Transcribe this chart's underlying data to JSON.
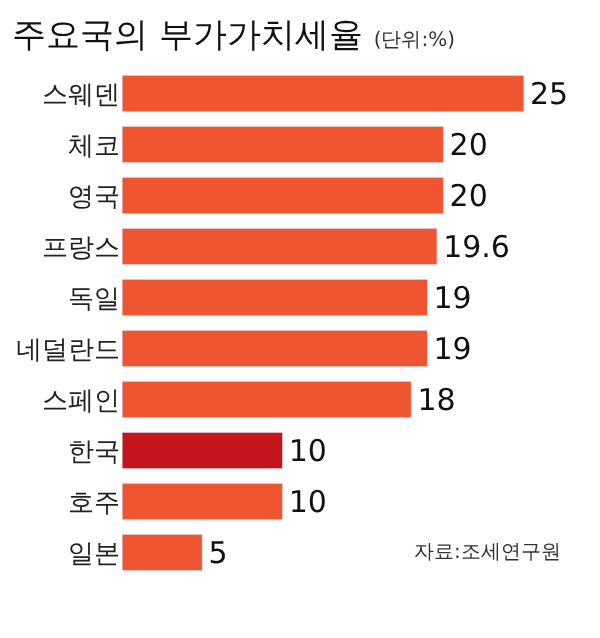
{
  "chart_data": {
    "type": "bar",
    "orientation": "horizontal",
    "title": "주요국의 부가가치세율",
    "subtitle": "(단위:%)",
    "categories": [
      "스웨덴",
      "체코",
      "영국",
      "프랑스",
      "독일",
      "네덜란드",
      "스페인",
      "한국",
      "호주",
      "일본"
    ],
    "values": [
      25,
      20,
      20,
      19.6,
      19,
      19,
      18,
      10,
      10,
      5
    ],
    "colors": [
      "#ee5530",
      "#ee5530",
      "#ee5530",
      "#ee5530",
      "#ee5530",
      "#ee5530",
      "#ee5530",
      "#c4141c",
      "#ee5530",
      "#ee5530"
    ],
    "data_labels": true,
    "annotations": [
      "자료:조세연구원"
    ]
  }
}
